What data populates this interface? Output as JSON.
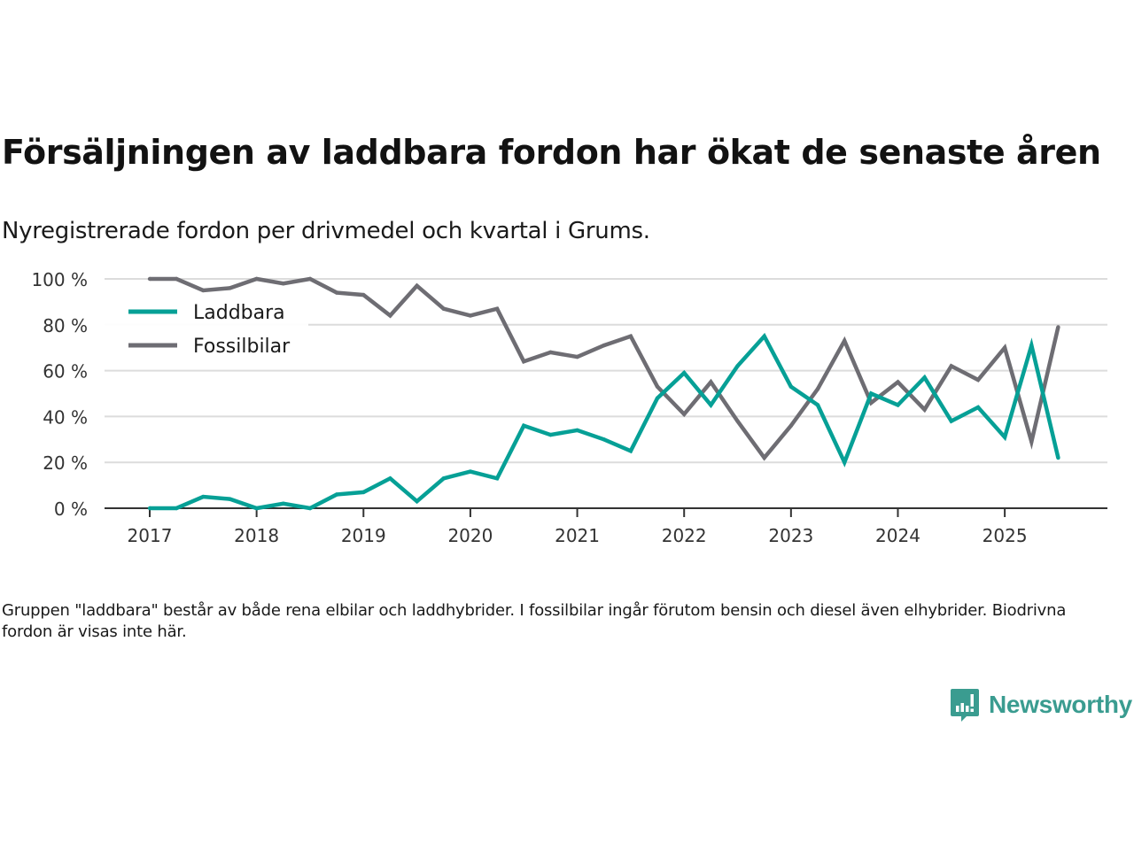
{
  "header": {
    "title": "Försäljningen av laddbara fordon har ökat de senaste åren",
    "subtitle": "Nyregistrerade fordon per drivmedel och kvartal i Grums."
  },
  "footer": {
    "note": "Gruppen \"laddbara\" består av både rena elbilar och laddhybrider. I fossilbilar ingår förutom bensin och diesel även elhybrider. Biodrivna fordon är visas inte här.",
    "brand": "Newsworthy",
    "brand_icon": "bar-chart-speech-bubble-icon",
    "brand_color": "#3a9c90"
  },
  "chart_data": {
    "type": "line",
    "title": "Försäljningen av laddbara fordon har ökat de senaste åren",
    "subtitle": "Nyregistrerade fordon per drivmedel och kvartal i Grums.",
    "xlabel": "",
    "ylabel": "",
    "x": [
      "2017Q1",
      "2017Q2",
      "2017Q3",
      "2017Q4",
      "2018Q1",
      "2018Q2",
      "2018Q3",
      "2018Q4",
      "2019Q1",
      "2019Q2",
      "2019Q3",
      "2019Q4",
      "2020Q1",
      "2020Q2",
      "2020Q3",
      "2020Q4",
      "2021Q1",
      "2021Q2",
      "2021Q3",
      "2021Q4",
      "2022Q1",
      "2022Q2",
      "2022Q3",
      "2022Q4",
      "2023Q1",
      "2023Q2",
      "2023Q3",
      "2023Q4",
      "2024Q1",
      "2024Q2",
      "2024Q3",
      "2024Q4",
      "2025Q1",
      "2025Q2",
      "2025Q3"
    ],
    "x_tick_labels": [
      "2017",
      "2018",
      "2019",
      "2020",
      "2021",
      "2022",
      "2023",
      "2024",
      "2025"
    ],
    "y_tick_labels": [
      "0 %",
      "20 %",
      "40 %",
      "60 %",
      "80 %",
      "100 %"
    ],
    "y_ticks": [
      0,
      20,
      40,
      60,
      80,
      100
    ],
    "ylim": [
      0,
      100
    ],
    "grid": true,
    "legend_position": "top-left",
    "series": [
      {
        "name": "Laddbara",
        "color": "#06a096",
        "values": [
          0,
          0,
          5,
          4,
          0,
          2,
          0,
          6,
          7,
          13,
          3,
          13,
          16,
          13,
          36,
          32,
          34,
          30,
          25,
          48,
          59,
          45,
          62,
          75,
          53,
          45,
          20,
          50,
          45,
          57,
          38,
          44,
          31,
          71,
          22
        ]
      },
      {
        "name": "Fossilbilar",
        "color": "#6e6d73",
        "values": [
          100,
          100,
          95,
          96,
          100,
          98,
          100,
          94,
          93,
          84,
          97,
          87,
          84,
          87,
          64,
          68,
          66,
          71,
          75,
          53,
          41,
          55,
          38,
          22,
          36,
          52,
          73,
          46,
          55,
          43,
          62,
          56,
          70,
          29,
          79
        ]
      }
    ]
  }
}
